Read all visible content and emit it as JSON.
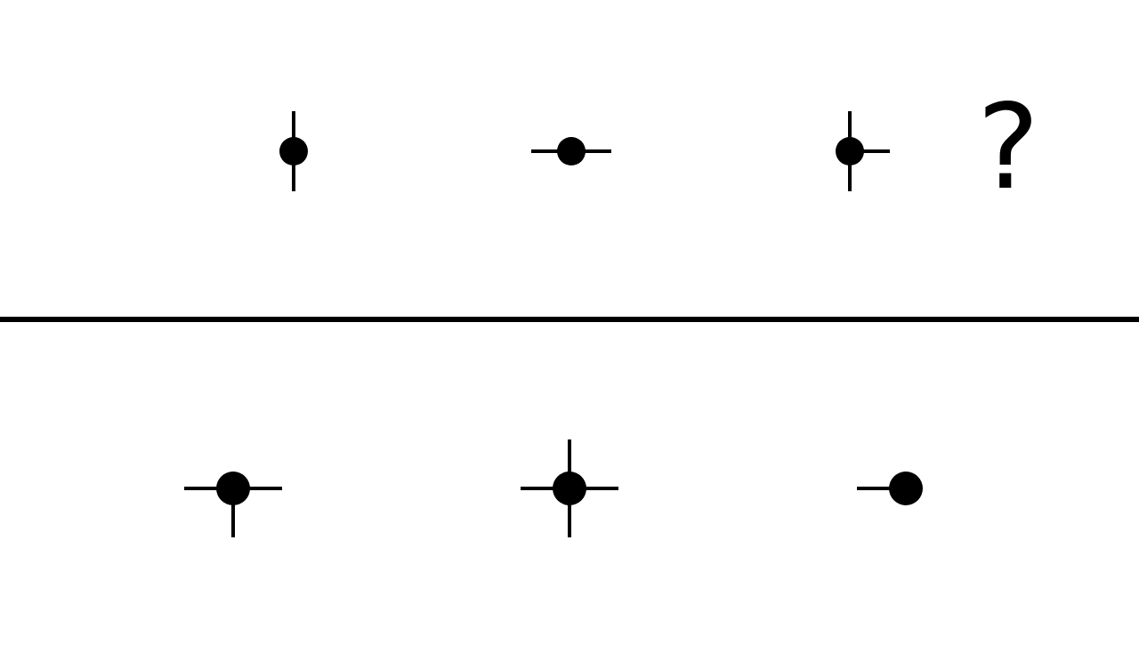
{
  "colors": {
    "ink": "#000000",
    "background": "#ffffff"
  },
  "question_mark": "?",
  "sequence": {
    "figures": [
      {
        "arms": [
          "up",
          "down"
        ]
      },
      {
        "arms": [
          "left",
          "right"
        ]
      },
      {
        "arms": [
          "up",
          "down",
          "right"
        ]
      }
    ]
  },
  "options": {
    "figures": [
      {
        "arms": [
          "left",
          "right",
          "down"
        ]
      },
      {
        "arms": [
          "up",
          "down",
          "left",
          "right"
        ]
      },
      {
        "arms": [
          "left"
        ]
      }
    ]
  }
}
